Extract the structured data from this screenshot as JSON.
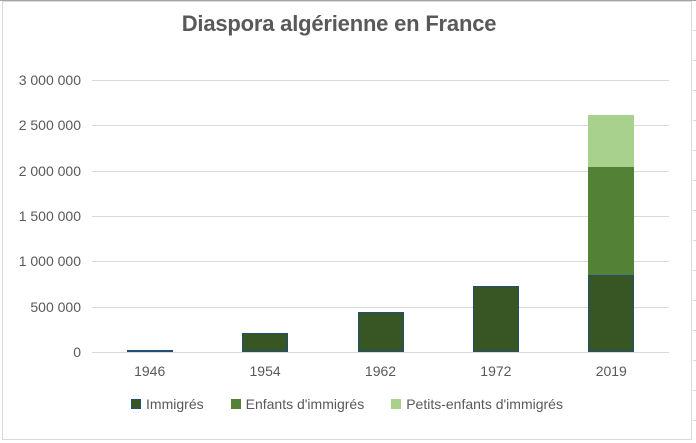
{
  "chart_data": {
    "type": "bar",
    "stacked": true,
    "title": "Diaspora algérienne en France",
    "categories": [
      "1946",
      "1954",
      "1962",
      "1972",
      "2019"
    ],
    "series": [
      {
        "name": "Immigrés",
        "slug": "immigres",
        "color": "#375623",
        "border_color": "#1f4e79",
        "values": [
          22000,
          212000,
          445000,
          730000,
          850000
        ]
      },
      {
        "name": "Enfants d'immigrés",
        "slug": "enfants-dimmigres",
        "color": "#538135",
        "border_color": null,
        "values": [
          0,
          0,
          0,
          0,
          1195000
        ]
      },
      {
        "name": "Petits-enfants d'immigrés",
        "slug": "petits-enfants-dimmigres",
        "color": "#a9d18e",
        "border_color": null,
        "values": [
          0,
          0,
          0,
          0,
          575000
        ]
      }
    ],
    "ylim": [
      0,
      3000000
    ],
    "ytick_step": 500000,
    "ytick_labels": [
      "0",
      "500 000",
      "1 000 000",
      "1 500 000",
      "2 000 000",
      "2 500 000",
      "3 000 000"
    ],
    "grid": true,
    "legend_position": "bottom"
  },
  "colors": {
    "text": "#595959",
    "gridline": "#d9d9d9",
    "frame_border": "#d9d9d9",
    "top_edge": "#a6a6a6"
  }
}
